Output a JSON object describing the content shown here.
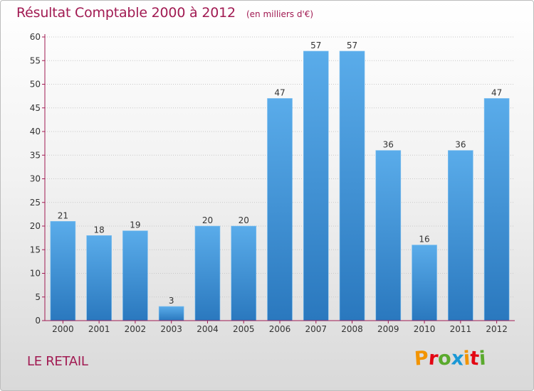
{
  "header": {
    "title": "Résultat Comptable 2000 à 2012",
    "subtitle": "(en milliers d'€)"
  },
  "footer": {
    "commune": "LE RETAIL",
    "logo": {
      "letters": [
        "P",
        "r",
        "o",
        "x",
        "i",
        "t",
        "i"
      ],
      "colors": [
        "#f29400",
        "#e30613",
        "#5aaa2d",
        "#1b98d5",
        "#f29400",
        "#e30613",
        "#5aaa2d"
      ]
    }
  },
  "chart_data": {
    "type": "bar",
    "title": "Résultat Comptable 2000 à 2012",
    "subtitle": "(en milliers d'€)",
    "xlabel": "",
    "ylabel": "",
    "categories": [
      "2000",
      "2001",
      "2002",
      "2003",
      "2004",
      "2005",
      "2006",
      "2007",
      "2008",
      "2009",
      "2010",
      "2011",
      "2012"
    ],
    "values": [
      21,
      18,
      19,
      3,
      20,
      20,
      47,
      57,
      57,
      36,
      16,
      36,
      47
    ],
    "ylim": [
      0,
      60
    ],
    "yticks": [
      0,
      5,
      10,
      15,
      20,
      25,
      30,
      35,
      40,
      45,
      50,
      55,
      60
    ],
    "grid": true,
    "bar_color_top": "#5aacea",
    "bar_color_bottom": "#2a78be",
    "axis_color": "#a11a52"
  }
}
